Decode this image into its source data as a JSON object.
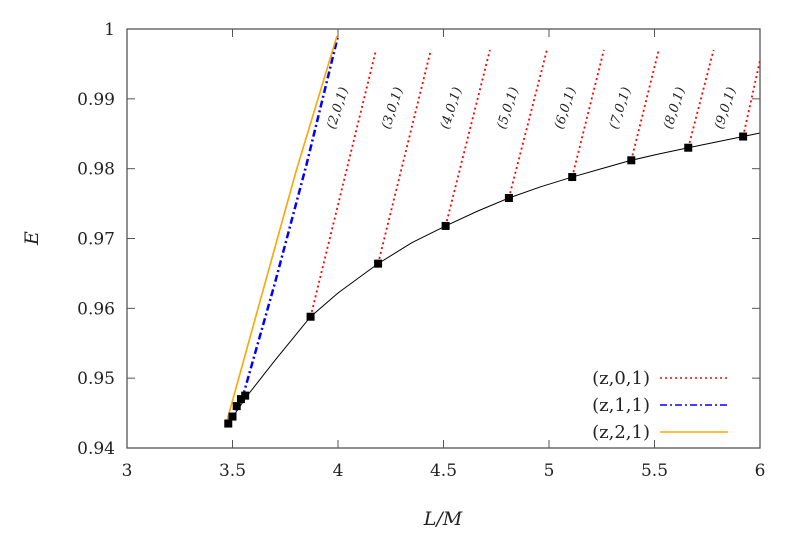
{
  "chart_data": {
    "type": "line",
    "xlabel": "L/M",
    "ylabel": "E",
    "xlim": [
      3,
      6
    ],
    "ylim": [
      0.94,
      1
    ],
    "xticks": [
      "3",
      "3.5",
      "4",
      "4.5",
      "5",
      "5.5",
      "6"
    ],
    "yticks": [
      "0.94",
      "0.95",
      "0.96",
      "0.97",
      "0.98",
      "0.99",
      "1"
    ],
    "grid": false,
    "legend_position": "bottom-right",
    "series": [
      {
        "name": "(z,0,1)",
        "color": "#ff0000",
        "style": "dotted",
        "segments": [
          {
            "label": "(2,0,1)",
            "from": [
              3.87,
              0.9588
            ],
            "to": [
              4.18,
              0.997
            ]
          },
          {
            "label": "(3,0,1)",
            "from": [
              4.19,
              0.9664
            ],
            "to": [
              4.44,
              0.997
            ]
          },
          {
            "label": "(4,0,1)",
            "from": [
              4.51,
              0.9718
            ],
            "to": [
              4.72,
              0.997
            ]
          },
          {
            "label": "(5,0,1)",
            "from": [
              4.81,
              0.9758
            ],
            "to": [
              4.99,
              0.997
            ]
          },
          {
            "label": "(6,0,1)",
            "from": [
              5.11,
              0.9788
            ],
            "to": [
              5.26,
              0.997
            ]
          },
          {
            "label": "(7,0,1)",
            "from": [
              5.39,
              0.9812
            ],
            "to": [
              5.52,
              0.997
            ]
          },
          {
            "label": "(8,0,1)",
            "from": [
              5.66,
              0.983
            ],
            "to": [
              5.78,
              0.997
            ]
          },
          {
            "label": "(9,0,1)",
            "from": [
              5.92,
              0.9846
            ],
            "to": [
              6.0,
              0.9955
            ]
          }
        ]
      },
      {
        "name": "(z,1,1)",
        "color": "#0000ff",
        "style": "dash-dot",
        "x": [
          3.48,
          3.55,
          3.7,
          3.85,
          4.0
        ],
        "y": [
          0.9435,
          0.9475,
          0.9635,
          0.9805,
          0.999
        ]
      },
      {
        "name": "(z,2,1)",
        "color": "#ffa500",
        "style": "solid",
        "x": [
          3.47,
          3.6,
          3.8,
          3.995
        ],
        "y": [
          0.9435,
          0.9577,
          0.9795,
          0.999
        ]
      }
    ],
    "curve": {
      "color": "#000000",
      "x": [
        3.48,
        3.57,
        3.7,
        3.87,
        4.0,
        4.19,
        4.35,
        4.51,
        4.66,
        4.81,
        4.96,
        5.11,
        5.25,
        5.39,
        5.52,
        5.66,
        5.79,
        5.92,
        6.0
      ],
      "y": [
        0.9435,
        0.9475,
        0.9525,
        0.9588,
        0.9622,
        0.9664,
        0.9694,
        0.9718,
        0.9739,
        0.9758,
        0.9774,
        0.9788,
        0.98,
        0.9812,
        0.9821,
        0.983,
        0.9838,
        0.9846,
        0.9851
      ]
    },
    "markers": {
      "x": [
        3.48,
        3.5,
        3.52,
        3.54,
        3.56,
        3.87,
        4.19,
        4.51,
        4.81,
        5.11,
        5.39,
        5.66,
        5.92
      ],
      "y": [
        0.9435,
        0.9445,
        0.946,
        0.947,
        0.9475,
        0.9588,
        0.9664,
        0.9718,
        0.9758,
        0.9788,
        0.9812,
        0.983,
        0.9846
      ]
    }
  }
}
